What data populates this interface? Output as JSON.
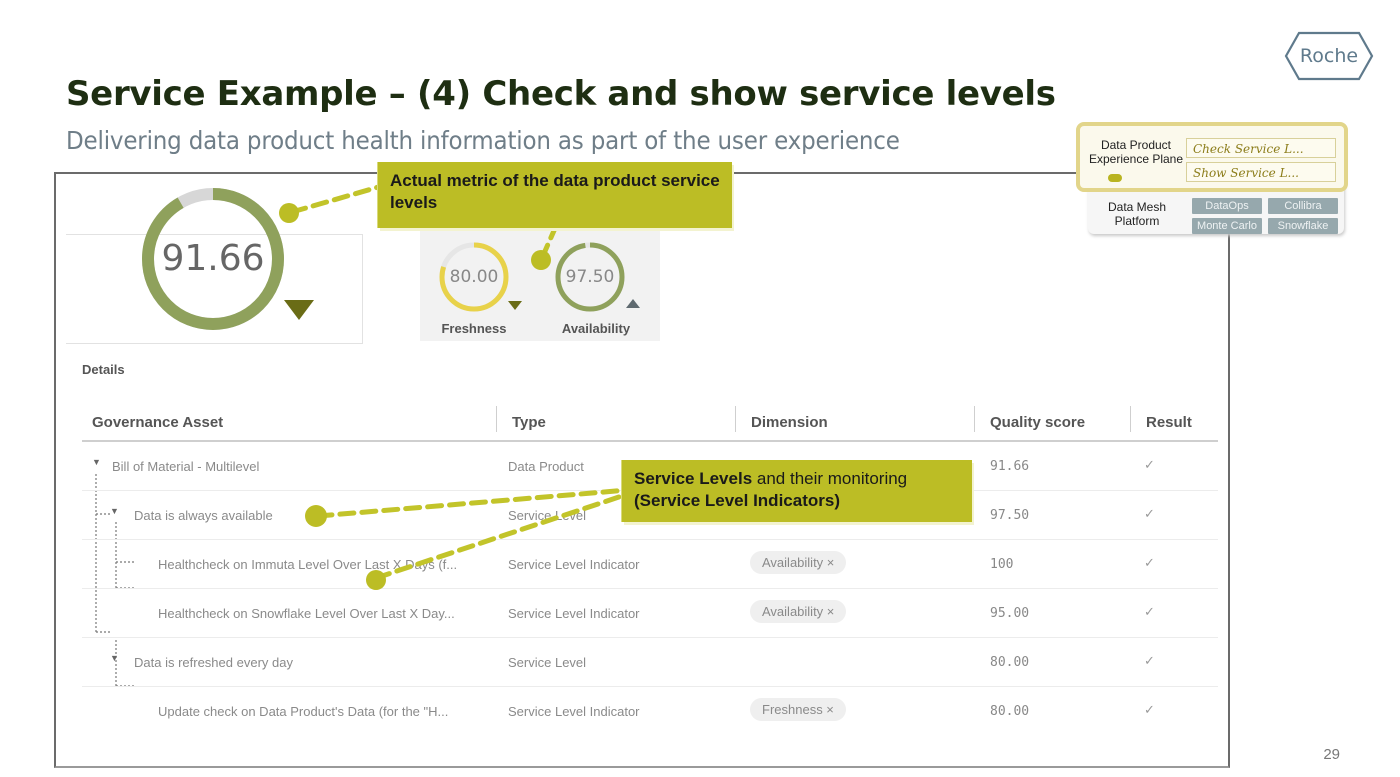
{
  "slide": {
    "title": "Service Example – (4) Check and show service levels",
    "subtitle": "Delivering data product health information as part of the user experience",
    "logo": "Roche",
    "page_number": "29"
  },
  "colors": {
    "accent": "#bcbd25",
    "title": "#1e2e12",
    "gauge_green": "#8fa15c",
    "gauge_yellow": "#e8d24a",
    "logo": "#5f7a8c"
  },
  "score_card": {
    "overall_score": "91.66",
    "overall_fraction": 0.9166,
    "trend_icon": "triangle-down-icon"
  },
  "metrics": [
    {
      "label": "Freshness",
      "value": "80.00",
      "fraction": 0.8,
      "trend_icon": "triangle-down-icon"
    },
    {
      "label": "Availability",
      "value": "97.50",
      "fraction": 0.975,
      "trend_icon": "triangle-up-icon"
    }
  ],
  "details": {
    "title": "Details",
    "columns": [
      "Governance Asset",
      "Type",
      "Dimension",
      "Quality score",
      "Result"
    ],
    "rows": [
      {
        "asset": "Bill of Material - Multilevel",
        "type": "Data Product",
        "dimension": "",
        "score": "91.66",
        "result": "✓",
        "level": 0,
        "expander": "▼"
      },
      {
        "asset": "Data is always available",
        "type": "Service Level",
        "dimension": "",
        "score": "97.50",
        "result": "✓",
        "level": 1,
        "expander": "▼"
      },
      {
        "asset": "Healthcheck on Immuta Level Over Last X Days (f...",
        "type": "Service Level Indicator",
        "dimension": "Availability ×",
        "score": "100",
        "result": "✓",
        "level": 2
      },
      {
        "asset": "Healthcheck on Snowflake Level Over Last X Day...",
        "type": "Service Level Indicator",
        "dimension": "Availability ×",
        "score": "95.00",
        "result": "✓",
        "level": 2
      },
      {
        "asset": "Data is refreshed every day",
        "type": "Service Level",
        "dimension": "",
        "score": "80.00",
        "result": "✓",
        "level": 1,
        "expander": "▼"
      },
      {
        "asset": "Update check on Data Product's Data (for the \"H...",
        "type": "Service Level Indicator",
        "dimension": "Freshness ×",
        "score": "80.00",
        "result": "✓",
        "level": 2
      }
    ]
  },
  "callouts": {
    "metric": "Actual metric of the data product service levels",
    "levels_bold": "Service Levels",
    "levels_normal": " and their monitoring",
    "levels_indicators": "(Service Level Indicators)"
  },
  "platform": {
    "experience_label": "Data Product Experience Plane",
    "check_button": "Check Service L...",
    "show_button": "Show Service L...",
    "mesh_label": "Data Mesh Platform",
    "tiles": [
      "DataOps",
      "Collibra",
      "Monte Carlo",
      "Snowflake"
    ]
  }
}
